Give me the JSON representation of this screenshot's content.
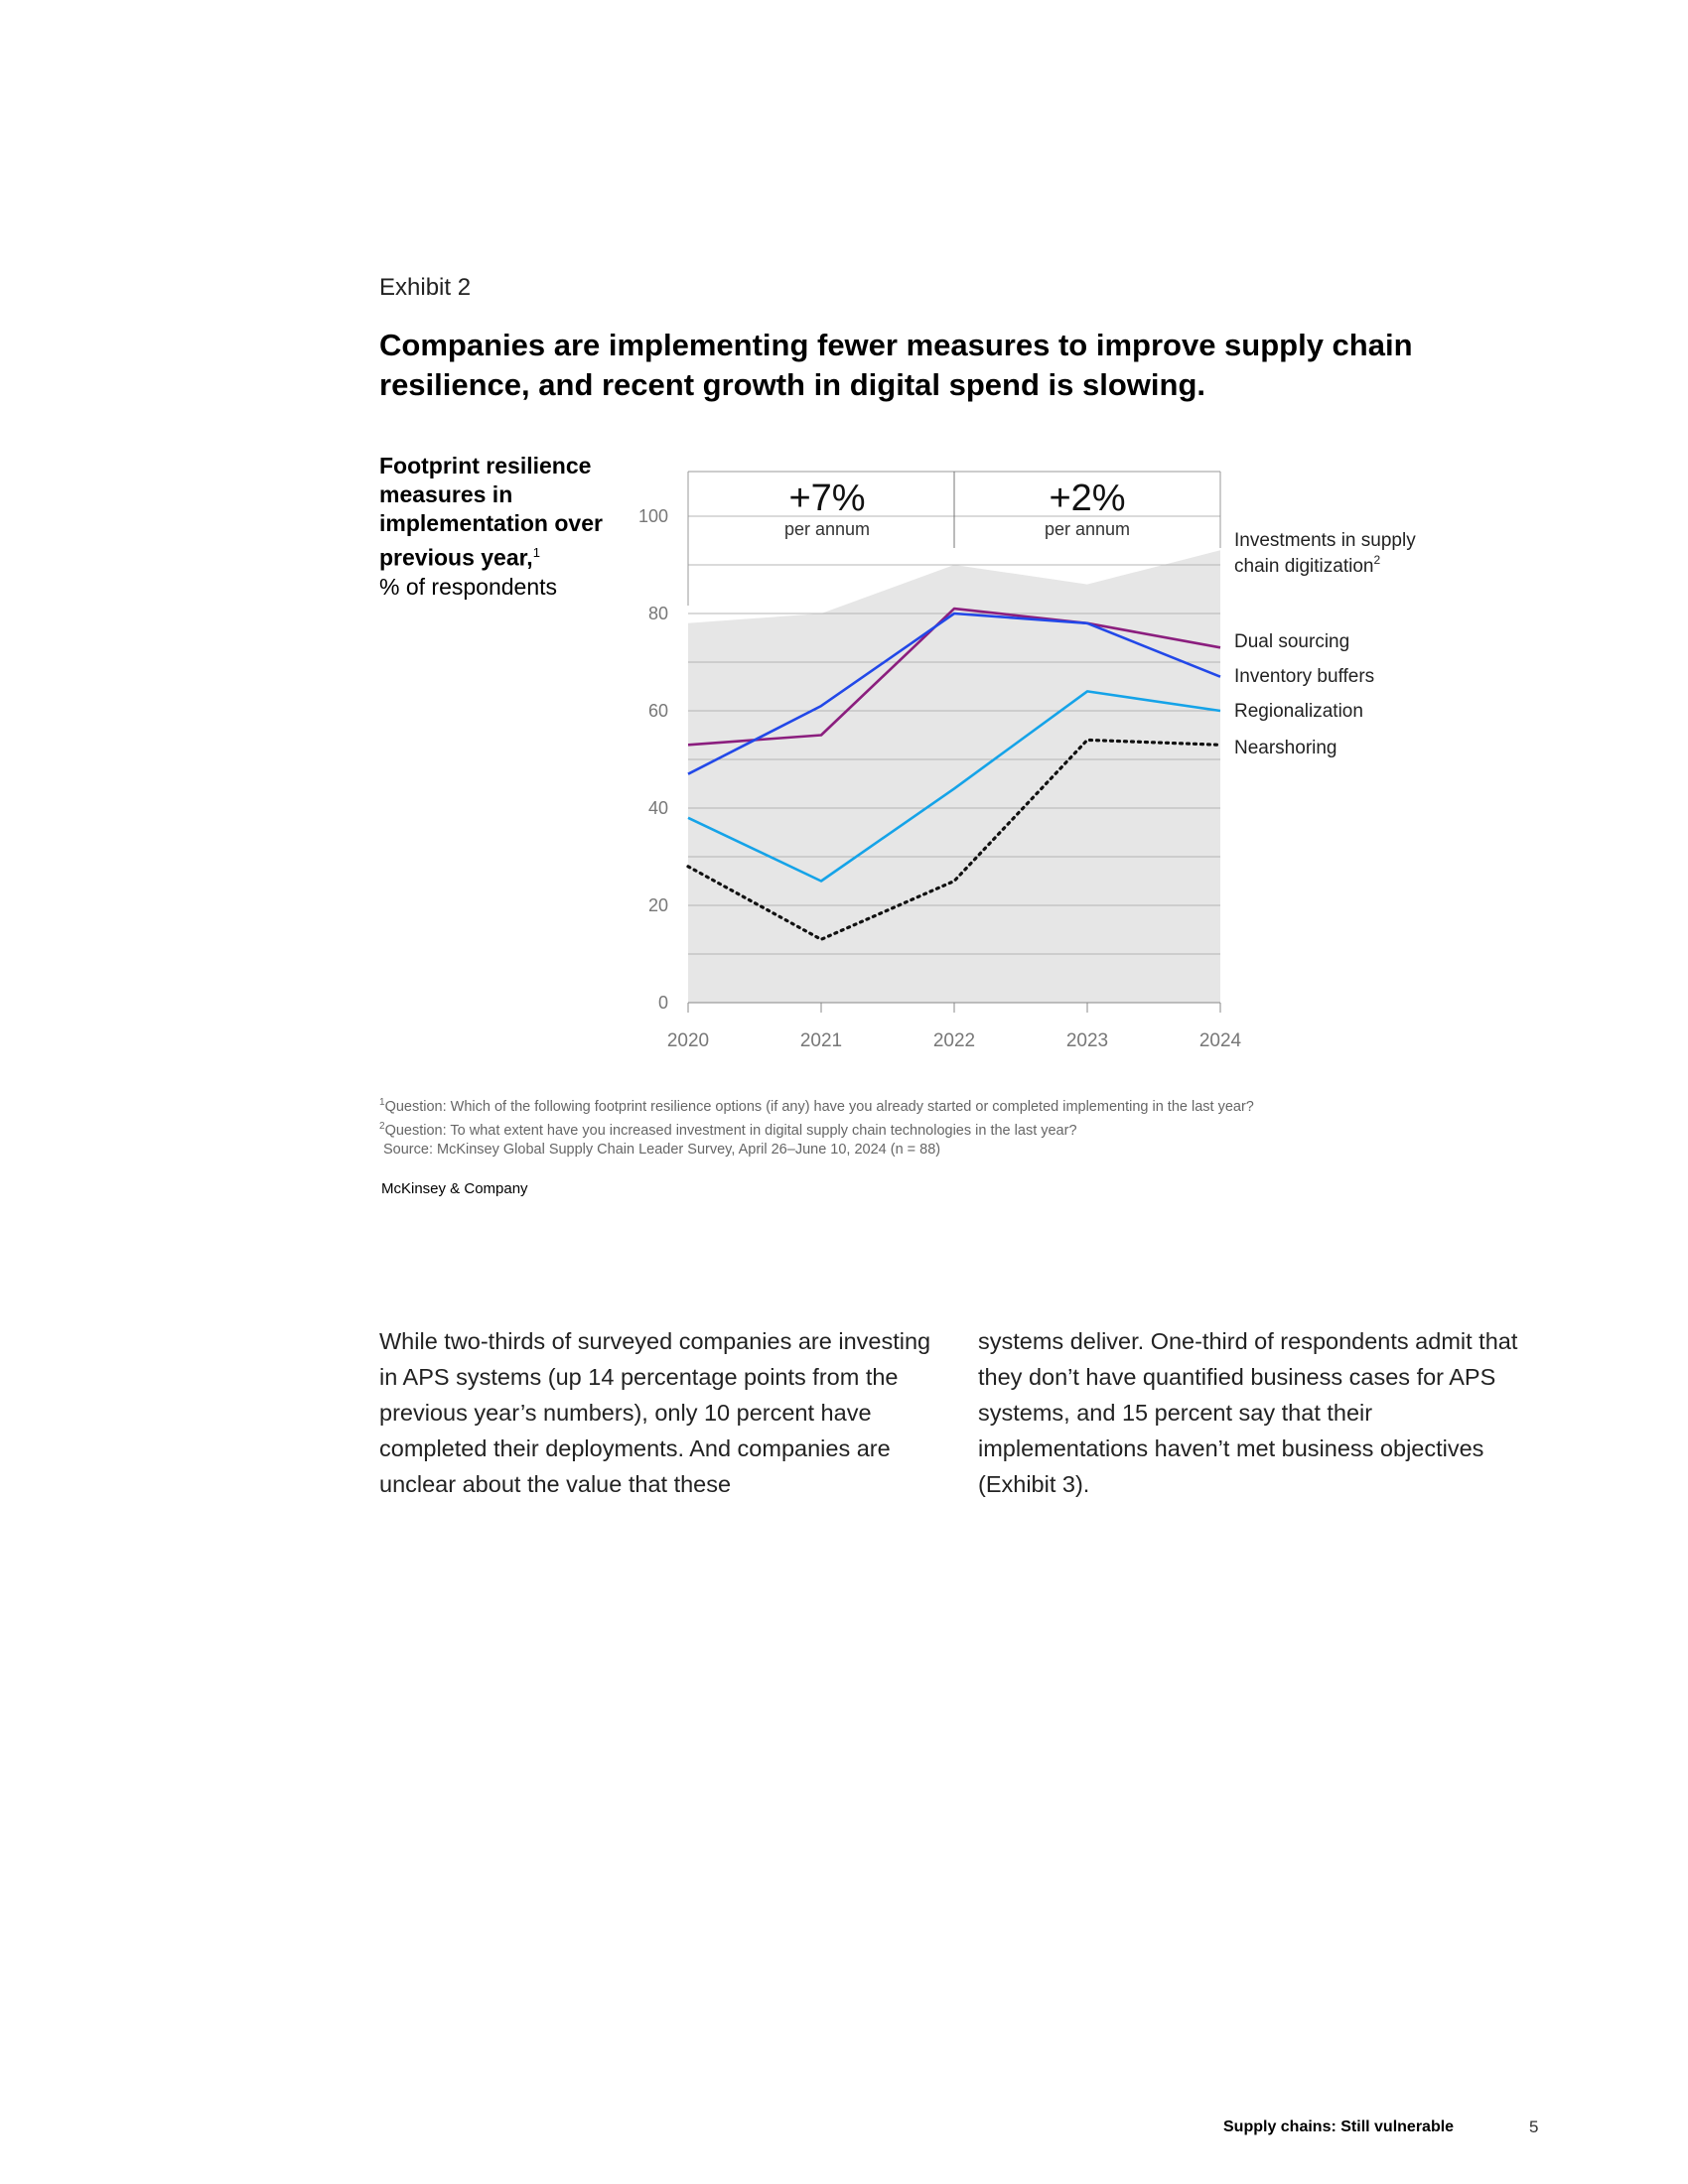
{
  "exhibit": {
    "label": "Exhibit 2",
    "title": "Companies are implementing fewer measures to improve supply chain resilience, and recent growth in digital spend is slowing."
  },
  "chart_data": {
    "type": "line",
    "ylabel_bold": "Footprint resilience measures in implementation over previous year,",
    "ylabel_sup": "1",
    "ylabel_unit": "% of respondents",
    "x": [
      "2020",
      "2021",
      "2022",
      "2023",
      "2024"
    ],
    "ylim": [
      0,
      100
    ],
    "yticks": [
      0,
      20,
      40,
      60,
      80,
      100
    ],
    "grid": true,
    "area": {
      "name": "Investments in supply chain digitization",
      "name_sup": "2",
      "values": [
        78,
        80,
        90,
        86,
        93
      ],
      "color": "#e6e6e6"
    },
    "growth_annotations": [
      {
        "value": "+7%",
        "unit": "per annum"
      },
      {
        "value": "+2%",
        "unit": "per annum"
      }
    ],
    "series": [
      {
        "name": "Dual sourcing",
        "values": [
          53,
          55,
          81,
          78,
          73
        ],
        "color": "#8b1e7e",
        "dashed": false
      },
      {
        "name": "Inventory buffers",
        "values": [
          47,
          61,
          80,
          78,
          67
        ],
        "color": "#2248e8",
        "dashed": false
      },
      {
        "name": "Regionalization",
        "values": [
          38,
          25,
          44,
          64,
          60
        ],
        "color": "#15a3e8",
        "dashed": false
      },
      {
        "name": "Nearshoring",
        "values": [
          28,
          13,
          25,
          54,
          53
        ],
        "color": "#111111",
        "dashed": true
      }
    ]
  },
  "footnotes": [
    {
      "sup": "1",
      "text": "Question: Which of the following footprint resilience options (if any) have you already started or completed implementing in the last year?"
    },
    {
      "sup": "2",
      "text": "Question: To what extent have you increased investment in digital supply chain technologies in the last year?"
    },
    {
      "sup": "",
      "text": "Source: McKinsey Global Supply Chain Leader Survey, April 26–June 10, 2024 (n = 88)"
    }
  ],
  "publisher": "McKinsey & Company",
  "body": {
    "left": "While two-thirds of surveyed companies are investing in APS systems (up 14 percentage points from the previous year’s numbers), only 10 percent have completed their deployments. And companies are unclear about the value that these",
    "right": "systems deliver. One-third of respondents admit that they don’t have quantified business cases for APS systems, and 15 percent say that their implementations haven’t met business objectives (Exhibit 3)."
  },
  "footer": {
    "title": "Supply chains: Still vulnerable",
    "page": "5"
  }
}
